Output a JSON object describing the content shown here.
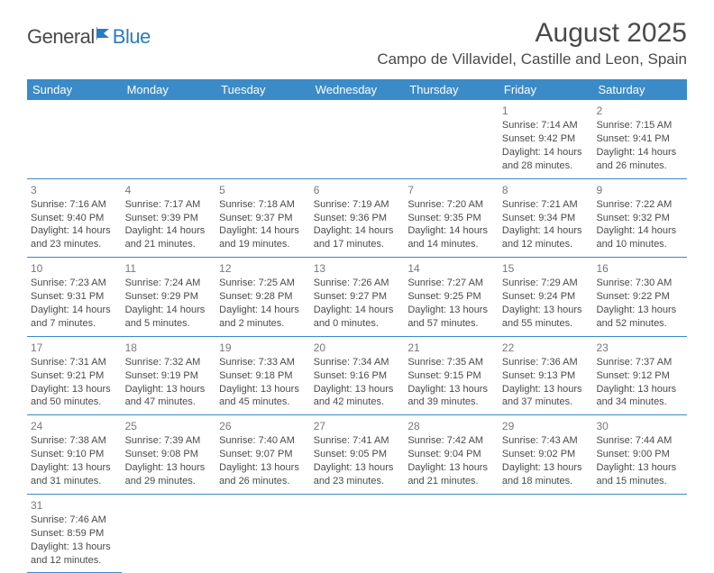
{
  "logo": {
    "general": "General",
    "blue": "Blue"
  },
  "header": {
    "title": "August 2025",
    "location": "Campo de Villavidel, Castille and Leon, Spain"
  },
  "weekdays": [
    "Sunday",
    "Monday",
    "Tuesday",
    "Wednesday",
    "Thursday",
    "Friday",
    "Saturday"
  ],
  "colors": {
    "header_bg": "#3b8bc8",
    "header_text": "#ffffff",
    "text": "#4a4a4a",
    "daynum": "#787878",
    "border": "#3b8bc8",
    "logo_blue": "#2b7bbf"
  },
  "weeks": [
    [
      {
        "n": "",
        "sr": "",
        "ss": "",
        "d1": "",
        "d2": ""
      },
      {
        "n": "",
        "sr": "",
        "ss": "",
        "d1": "",
        "d2": ""
      },
      {
        "n": "",
        "sr": "",
        "ss": "",
        "d1": "",
        "d2": ""
      },
      {
        "n": "",
        "sr": "",
        "ss": "",
        "d1": "",
        "d2": ""
      },
      {
        "n": "",
        "sr": "",
        "ss": "",
        "d1": "",
        "d2": ""
      },
      {
        "n": "1",
        "sr": "Sunrise: 7:14 AM",
        "ss": "Sunset: 9:42 PM",
        "d1": "Daylight: 14 hours",
        "d2": "and 28 minutes."
      },
      {
        "n": "2",
        "sr": "Sunrise: 7:15 AM",
        "ss": "Sunset: 9:41 PM",
        "d1": "Daylight: 14 hours",
        "d2": "and 26 minutes."
      }
    ],
    [
      {
        "n": "3",
        "sr": "Sunrise: 7:16 AM",
        "ss": "Sunset: 9:40 PM",
        "d1": "Daylight: 14 hours",
        "d2": "and 23 minutes."
      },
      {
        "n": "4",
        "sr": "Sunrise: 7:17 AM",
        "ss": "Sunset: 9:39 PM",
        "d1": "Daylight: 14 hours",
        "d2": "and 21 minutes."
      },
      {
        "n": "5",
        "sr": "Sunrise: 7:18 AM",
        "ss": "Sunset: 9:37 PM",
        "d1": "Daylight: 14 hours",
        "d2": "and 19 minutes."
      },
      {
        "n": "6",
        "sr": "Sunrise: 7:19 AM",
        "ss": "Sunset: 9:36 PM",
        "d1": "Daylight: 14 hours",
        "d2": "and 17 minutes."
      },
      {
        "n": "7",
        "sr": "Sunrise: 7:20 AM",
        "ss": "Sunset: 9:35 PM",
        "d1": "Daylight: 14 hours",
        "d2": "and 14 minutes."
      },
      {
        "n": "8",
        "sr": "Sunrise: 7:21 AM",
        "ss": "Sunset: 9:34 PM",
        "d1": "Daylight: 14 hours",
        "d2": "and 12 minutes."
      },
      {
        "n": "9",
        "sr": "Sunrise: 7:22 AM",
        "ss": "Sunset: 9:32 PM",
        "d1": "Daylight: 14 hours",
        "d2": "and 10 minutes."
      }
    ],
    [
      {
        "n": "10",
        "sr": "Sunrise: 7:23 AM",
        "ss": "Sunset: 9:31 PM",
        "d1": "Daylight: 14 hours",
        "d2": "and 7 minutes."
      },
      {
        "n": "11",
        "sr": "Sunrise: 7:24 AM",
        "ss": "Sunset: 9:29 PM",
        "d1": "Daylight: 14 hours",
        "d2": "and 5 minutes."
      },
      {
        "n": "12",
        "sr": "Sunrise: 7:25 AM",
        "ss": "Sunset: 9:28 PM",
        "d1": "Daylight: 14 hours",
        "d2": "and 2 minutes."
      },
      {
        "n": "13",
        "sr": "Sunrise: 7:26 AM",
        "ss": "Sunset: 9:27 PM",
        "d1": "Daylight: 14 hours",
        "d2": "and 0 minutes."
      },
      {
        "n": "14",
        "sr": "Sunrise: 7:27 AM",
        "ss": "Sunset: 9:25 PM",
        "d1": "Daylight: 13 hours",
        "d2": "and 57 minutes."
      },
      {
        "n": "15",
        "sr": "Sunrise: 7:29 AM",
        "ss": "Sunset: 9:24 PM",
        "d1": "Daylight: 13 hours",
        "d2": "and 55 minutes."
      },
      {
        "n": "16",
        "sr": "Sunrise: 7:30 AM",
        "ss": "Sunset: 9:22 PM",
        "d1": "Daylight: 13 hours",
        "d2": "and 52 minutes."
      }
    ],
    [
      {
        "n": "17",
        "sr": "Sunrise: 7:31 AM",
        "ss": "Sunset: 9:21 PM",
        "d1": "Daylight: 13 hours",
        "d2": "and 50 minutes."
      },
      {
        "n": "18",
        "sr": "Sunrise: 7:32 AM",
        "ss": "Sunset: 9:19 PM",
        "d1": "Daylight: 13 hours",
        "d2": "and 47 minutes."
      },
      {
        "n": "19",
        "sr": "Sunrise: 7:33 AM",
        "ss": "Sunset: 9:18 PM",
        "d1": "Daylight: 13 hours",
        "d2": "and 45 minutes."
      },
      {
        "n": "20",
        "sr": "Sunrise: 7:34 AM",
        "ss": "Sunset: 9:16 PM",
        "d1": "Daylight: 13 hours",
        "d2": "and 42 minutes."
      },
      {
        "n": "21",
        "sr": "Sunrise: 7:35 AM",
        "ss": "Sunset: 9:15 PM",
        "d1": "Daylight: 13 hours",
        "d2": "and 39 minutes."
      },
      {
        "n": "22",
        "sr": "Sunrise: 7:36 AM",
        "ss": "Sunset: 9:13 PM",
        "d1": "Daylight: 13 hours",
        "d2": "and 37 minutes."
      },
      {
        "n": "23",
        "sr": "Sunrise: 7:37 AM",
        "ss": "Sunset: 9:12 PM",
        "d1": "Daylight: 13 hours",
        "d2": "and 34 minutes."
      }
    ],
    [
      {
        "n": "24",
        "sr": "Sunrise: 7:38 AM",
        "ss": "Sunset: 9:10 PM",
        "d1": "Daylight: 13 hours",
        "d2": "and 31 minutes."
      },
      {
        "n": "25",
        "sr": "Sunrise: 7:39 AM",
        "ss": "Sunset: 9:08 PM",
        "d1": "Daylight: 13 hours",
        "d2": "and 29 minutes."
      },
      {
        "n": "26",
        "sr": "Sunrise: 7:40 AM",
        "ss": "Sunset: 9:07 PM",
        "d1": "Daylight: 13 hours",
        "d2": "and 26 minutes."
      },
      {
        "n": "27",
        "sr": "Sunrise: 7:41 AM",
        "ss": "Sunset: 9:05 PM",
        "d1": "Daylight: 13 hours",
        "d2": "and 23 minutes."
      },
      {
        "n": "28",
        "sr": "Sunrise: 7:42 AM",
        "ss": "Sunset: 9:04 PM",
        "d1": "Daylight: 13 hours",
        "d2": "and 21 minutes."
      },
      {
        "n": "29",
        "sr": "Sunrise: 7:43 AM",
        "ss": "Sunset: 9:02 PM",
        "d1": "Daylight: 13 hours",
        "d2": "and 18 minutes."
      },
      {
        "n": "30",
        "sr": "Sunrise: 7:44 AM",
        "ss": "Sunset: 9:00 PM",
        "d1": "Daylight: 13 hours",
        "d2": "and 15 minutes."
      }
    ],
    [
      {
        "n": "31",
        "sr": "Sunrise: 7:46 AM",
        "ss": "Sunset: 8:59 PM",
        "d1": "Daylight: 13 hours",
        "d2": "and 12 minutes."
      },
      {
        "n": "",
        "sr": "",
        "ss": "",
        "d1": "",
        "d2": ""
      },
      {
        "n": "",
        "sr": "",
        "ss": "",
        "d1": "",
        "d2": ""
      },
      {
        "n": "",
        "sr": "",
        "ss": "",
        "d1": "",
        "d2": ""
      },
      {
        "n": "",
        "sr": "",
        "ss": "",
        "d1": "",
        "d2": ""
      },
      {
        "n": "",
        "sr": "",
        "ss": "",
        "d1": "",
        "d2": ""
      },
      {
        "n": "",
        "sr": "",
        "ss": "",
        "d1": "",
        "d2": ""
      }
    ]
  ]
}
